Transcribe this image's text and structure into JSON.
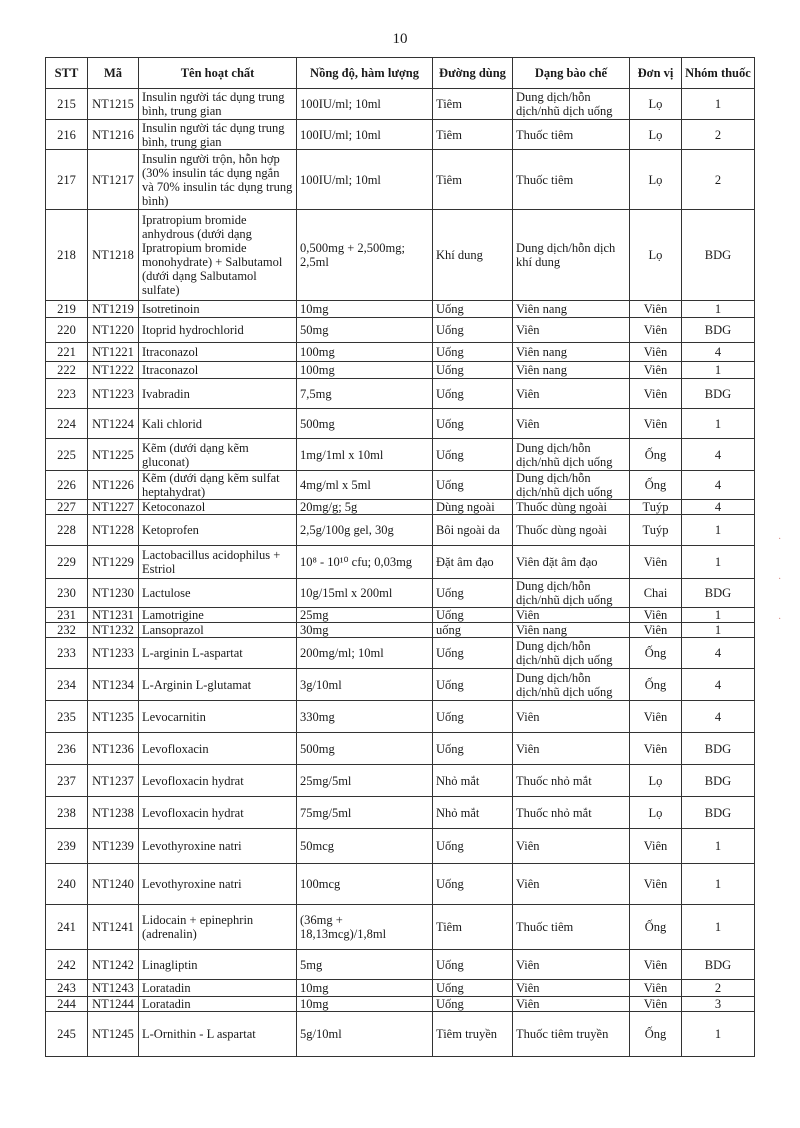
{
  "page_number": "10",
  "table": {
    "headers": [
      "STT",
      "Mã",
      "Tên hoạt chất",
      "Nồng độ, hàm lượng",
      "Đường dùng",
      "Dạng bào chế",
      "Đơn vị",
      "Nhóm thuốc"
    ],
    "rows": [
      [
        "215",
        "NT1215",
        "Insulin người tác dụng trung bình, trung gian",
        "100IU/ml; 10ml",
        "Tiêm",
        "Dung dịch/hỗn dịch/nhũ dịch uống",
        "Lọ",
        "1"
      ],
      [
        "216",
        "NT1216",
        "Insulin người tác dụng trung bình, trung gian",
        "100IU/ml; 10ml",
        "Tiêm",
        "Thuốc tiêm",
        "Lọ",
        "2"
      ],
      [
        "217",
        "NT1217",
        "Insulin người trộn, hỗn hợp (30% insulin tác dụng ngắn và 70% insulin tác dụng trung bình)",
        "100IU/ml; 10ml",
        "Tiêm",
        "Thuốc tiêm",
        "Lọ",
        "2"
      ],
      [
        "218",
        "NT1218",
        "Ipratropium bromide anhydrous (dưới dạng Ipratropium bromide monohydrate) + Salbutamol (dưới dạng Salbutamol sulfate)",
        "0,500mg + 2,500mg; 2,5ml",
        "Khí dung",
        "Dung dịch/hỗn dịch khí dung",
        "Lọ",
        "BDG"
      ],
      [
        "219",
        "NT1219",
        "Isotretinoin",
        "10mg",
        "Uống",
        "Viên nang",
        "Viên",
        "1"
      ],
      [
        "220",
        "NT1220",
        "Itoprid hydrochlorid",
        "50mg",
        "Uống",
        "Viên",
        "Viên",
        "BDG"
      ],
      [
        "221",
        "NT1221",
        "Itraconazol",
        "100mg",
        "Uống",
        "Viên nang",
        "Viên",
        "4"
      ],
      [
        "222",
        "NT1222",
        "Itraconazol",
        "100mg",
        "Uống",
        "Viên nang",
        "Viên",
        "1"
      ],
      [
        "223",
        "NT1223",
        "Ivabradin",
        "7,5mg",
        "Uống",
        "Viên",
        "Viên",
        "BDG"
      ],
      [
        "224",
        "NT1224",
        "Kali chlorid",
        "500mg",
        "Uống",
        "Viên",
        "Viên",
        "1"
      ],
      [
        "225",
        "NT1225",
        "Kẽm (dưới dạng kẽm gluconat)",
        "1mg/1ml x 10ml",
        "Uống",
        "Dung dịch/hỗn dịch/nhũ dịch uống",
        "Ống",
        "4"
      ],
      [
        "226",
        "NT1226",
        "Kẽm (dưới dạng kẽm sulfat heptahydrat)",
        "4mg/ml x 5ml",
        "Uống",
        "Dung dịch/hỗn dịch/nhũ dịch uống",
        "Ống",
        "4"
      ],
      [
        "227",
        "NT1227",
        "Ketoconazol",
        "20mg/g; 5g",
        "Dùng ngoài",
        "Thuốc  dùng ngoài",
        "Tuýp",
        "4"
      ],
      [
        "228",
        "NT1228",
        "Ketoprofen",
        "2,5g/100g gel, 30g",
        "Bôi ngoài da",
        "Thuốc dùng ngoài",
        "Tuýp",
        "1"
      ],
      [
        "229",
        "NT1229",
        "Lactobacillus acidophilus + Estriol",
        "10⁸ - 10¹⁰ cfu; 0,03mg",
        "Đặt âm đạo",
        "Viên đặt âm đạo",
        "Viên",
        "1"
      ],
      [
        "230",
        "NT1230",
        "Lactulose",
        "10g/15ml x 200ml",
        "Uống",
        "Dung dịch/hỗn dịch/nhũ dịch uống",
        "Chai",
        "BDG"
      ],
      [
        "231",
        "NT1231",
        "Lamotrigine",
        "25mg",
        "Uống",
        "Viên",
        "Viên",
        "1"
      ],
      [
        "232",
        "NT1232",
        "Lansoprazol",
        "30mg",
        "uống",
        "Viên nang",
        "Viên",
        "1"
      ],
      [
        "233",
        "NT1233",
        "L-arginin L-aspartat",
        "200mg/ml; 10ml",
        "Uống",
        "Dung dịch/hỗn dịch/nhũ dịch uống",
        "Ống",
        "4"
      ],
      [
        "234",
        "NT1234",
        "L-Arginin L-glutamat",
        "3g/10ml",
        "Uống",
        "Dung dịch/hỗn dịch/nhũ dịch uống",
        "Ống",
        "4"
      ],
      [
        "235",
        "NT1235",
        "Levocarnitin",
        "330mg",
        "Uống",
        "Viên",
        "Viên",
        "4"
      ],
      [
        "236",
        "NT1236",
        "Levofloxacin",
        "500mg",
        "Uống",
        "Viên",
        "Viên",
        "BDG"
      ],
      [
        "237",
        "NT1237",
        "Levofloxacin hydrat",
        "25mg/5ml",
        "Nhỏ mắt",
        "Thuốc nhỏ mắt",
        "Lọ",
        "BDG"
      ],
      [
        "238",
        "NT1238",
        "Levofloxacin hydrat",
        "75mg/5ml",
        "Nhỏ mắt",
        "Thuốc nhỏ mắt",
        "Lọ",
        "BDG"
      ],
      [
        "239",
        "NT1239",
        "Levothyroxine natri",
        "50mcg",
        "Uống",
        "Viên",
        "Viên",
        "1"
      ],
      [
        "240",
        "NT1240",
        "Levothyroxine natri",
        "100mcg",
        "Uống",
        "Viên",
        "Viên",
        "1"
      ],
      [
        "241",
        "NT1241",
        "Lidocain + epinephrin (adrenalin)",
        "(36mg + 18,13mcg)/1,8ml",
        "Tiêm",
        "Thuốc tiêm",
        "Ống",
        "1"
      ],
      [
        "242",
        "NT1242",
        "Linagliptin",
        "5mg",
        "Uống",
        "Viên",
        "Viên",
        "BDG"
      ],
      [
        "243",
        "NT1243",
        "Loratadin",
        "10mg",
        "Uống",
        "Viên",
        "Viên",
        "2"
      ],
      [
        "244",
        "NT1244",
        "Loratadin",
        "10mg",
        "Uống",
        "Viên",
        "Viên",
        "3"
      ],
      [
        "245",
        "NT1245",
        "L-Ornithin - L aspartat",
        "5g/10ml",
        "Tiêm truyền",
        "Thuốc tiêm truyền",
        "Ống",
        "1"
      ]
    ]
  }
}
